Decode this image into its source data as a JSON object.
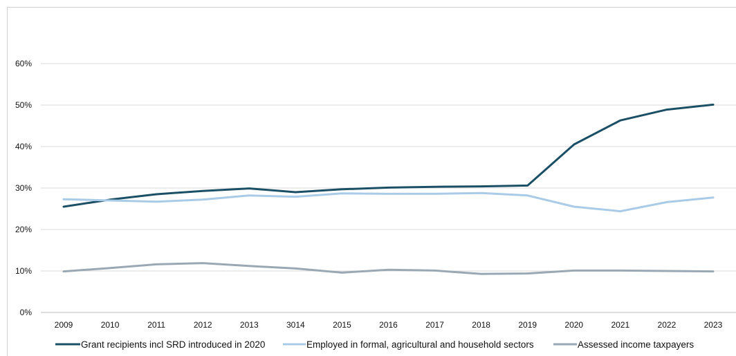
{
  "chart_data": {
    "type": "line",
    "title": "",
    "xlabel": "",
    "ylabel": "",
    "categories": [
      "2009",
      "2010",
      "2011",
      "2012",
      "2013",
      "3014",
      "2015",
      "2016",
      "2017",
      "2018",
      "2019",
      "2020",
      "2021",
      "2022",
      "2023"
    ],
    "ylim": [
      0,
      0.6
    ],
    "yticks": [
      "0%",
      "10%",
      "20%",
      "30%",
      "40%",
      "50%",
      "60%"
    ],
    "grid": true,
    "legend_position": "bottom",
    "series": [
      {
        "name": "Grant recipients incl SRD introduced in 2020",
        "color": "#1b4f66",
        "values": [
          0.255,
          0.272,
          0.285,
          0.293,
          0.299,
          0.29,
          0.297,
          0.301,
          0.303,
          0.304,
          0.306,
          0.405,
          0.463,
          0.489,
          0.501
        ]
      },
      {
        "name": "Employed in formal, agricultural and household sectors",
        "color": "#a9cbe8",
        "values": [
          0.273,
          0.27,
          0.267,
          0.272,
          0.282,
          0.279,
          0.287,
          0.286,
          0.286,
          0.288,
          0.282,
          0.255,
          0.244,
          0.266,
          0.277
        ]
      },
      {
        "name": "Assessed income taxpayers",
        "color": "#9aa8b4",
        "values": [
          0.099,
          0.107,
          0.116,
          0.119,
          0.112,
          0.106,
          0.096,
          0.103,
          0.101,
          0.093,
          0.094,
          0.101,
          0.101,
          0.1,
          0.099
        ]
      }
    ]
  }
}
